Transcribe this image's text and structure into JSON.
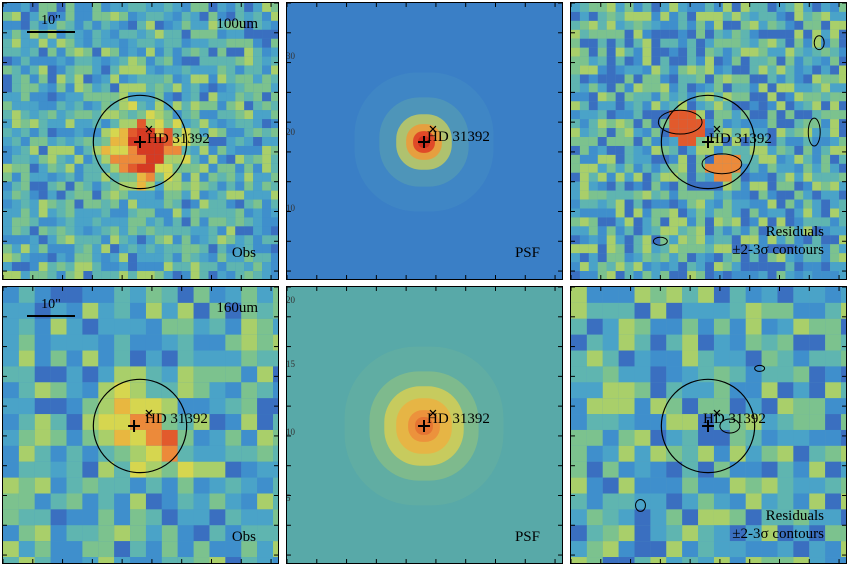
{
  "target": "HD 31392",
  "scale_label": "10\"",
  "rows": [
    {
      "band": "100um",
      "panels": [
        {
          "kind": "obs",
          "label": "Obs",
          "seed": 11,
          "bg": "#3f8fc8"
        },
        {
          "kind": "psf",
          "label": "PSF",
          "bg": "#3a7fc6",
          "axis_ticks": [
            "30",
            "20",
            "10"
          ]
        },
        {
          "kind": "res",
          "label": "Residuals",
          "label2": "±2-3σ contours",
          "seed": 23,
          "bg": "#5aa0c0"
        }
      ]
    },
    {
      "band": "160um",
      "panels": [
        {
          "kind": "obs",
          "label": "Obs",
          "seed": 37,
          "bg": "#4a96c4"
        },
        {
          "kind": "psf",
          "label": "PSF",
          "bg": "#58a9a8",
          "axis_ticks": [
            "20",
            "15",
            "10",
            "5"
          ]
        },
        {
          "kind": "res",
          "label": "Residuals",
          "label2": "±2-3σ contours",
          "seed": 41,
          "bg": "#5a9fc0"
        }
      ]
    }
  ]
}
